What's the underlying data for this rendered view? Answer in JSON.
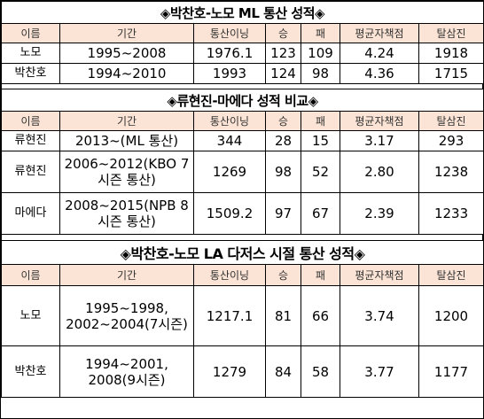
{
  "headers": [
    "이름",
    "기간",
    "통산이닝",
    "승",
    "패",
    "평균자책점",
    "탈삼진"
  ],
  "table1": {
    "title": "◈박찬호-노모 ML 통산 성적◈",
    "rows": [
      [
        "노모",
        "1995~2008",
        "1976.1",
        "123",
        "109",
        "4.24",
        "1918"
      ],
      [
        "박찬호",
        "1994~2010",
        "1993",
        "124",
        "98",
        "4.36",
        "1715"
      ]
    ]
  },
  "table2": {
    "title": "◈류현진-마에다 성적 비교◈",
    "rows": [
      [
        "류현진",
        "2013~(ML 통산)",
        "344",
        "28",
        "15",
        "3.17",
        "293"
      ],
      [
        "류현진",
        "2006~2012(KBO 7시즌 통산)",
        "1269",
        "98",
        "52",
        "2.80",
        "1238"
      ],
      [
        "마에다",
        "2008~2015(NPB 8시즌 통산)",
        "1509.2",
        "97",
        "67",
        "2.39",
        "1233"
      ]
    ]
  },
  "table3": {
    "title": "◈박찬호-노모 LA 다저스 시절 통산 성적◈",
    "rows": [
      [
        "노모",
        "1995~1998, 2002~2004(7시즌)",
        "1217.1",
        "81",
        "66",
        "3.74",
        "1200"
      ],
      [
        "박찬호",
        "1994~2001, 2008(9시즌)",
        "1279",
        "84",
        "58",
        "3.77",
        "1177"
      ]
    ]
  }
}
